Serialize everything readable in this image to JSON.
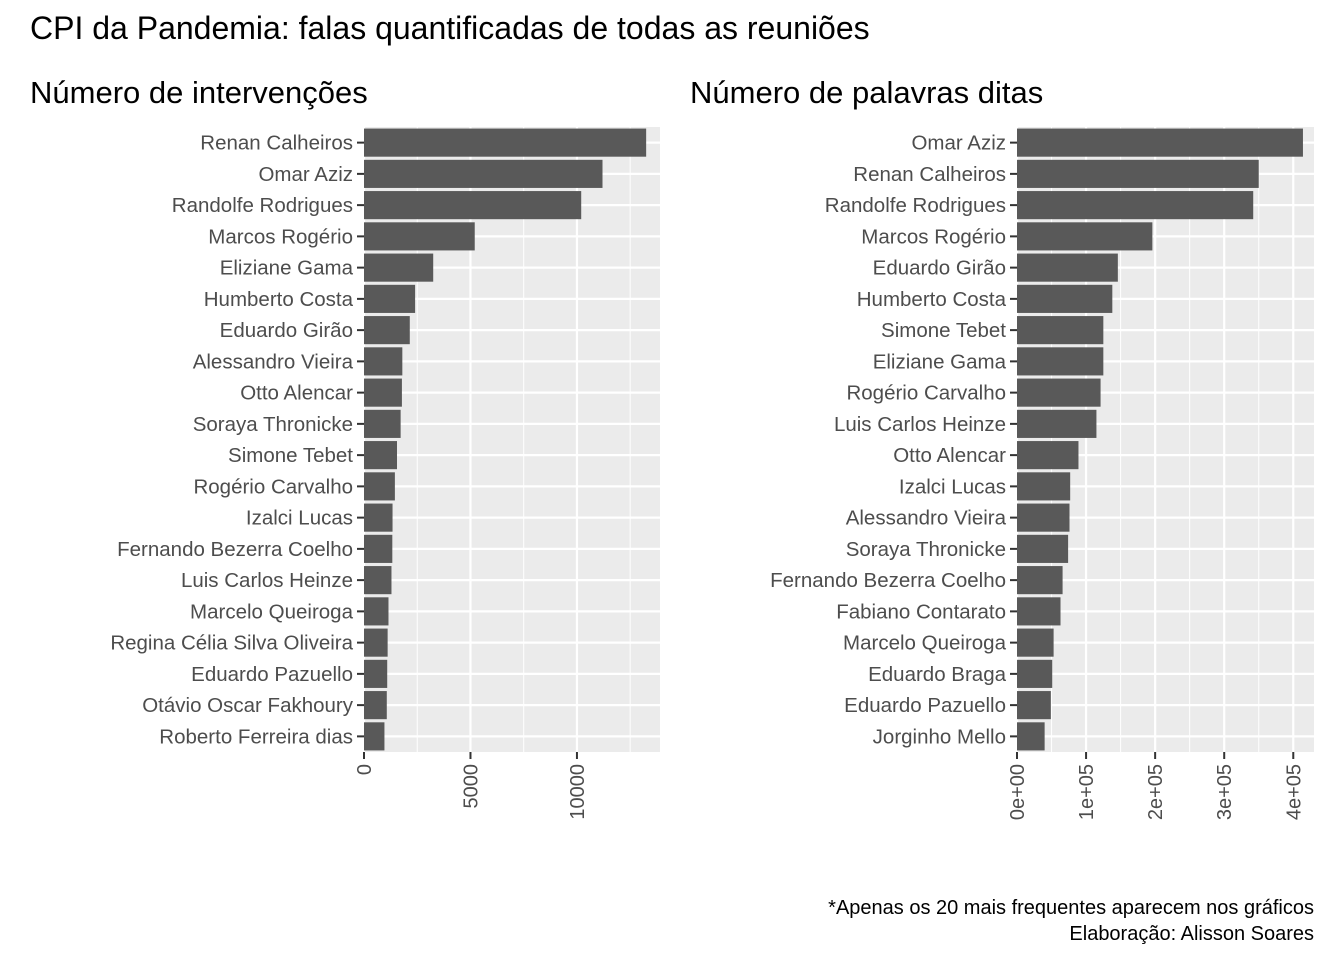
{
  "chart_data": {
    "title": "CPI da Pandemia: falas quantificadas de todas as reuniões",
    "caption": [
      "*Apenas os 20 mais frequentes aparecem nos gráficos",
      "Elaboração: Alisson Soares"
    ],
    "panels": [
      {
        "type": "bar",
        "orientation": "horizontal",
        "title": "Número de intervenções",
        "xlabel": "",
        "ylabel": "",
        "xlim": [
          0,
          13900
        ],
        "xticks": [
          0,
          5000,
          10000
        ],
        "xtick_labels": [
          "0",
          "5000",
          "10000"
        ],
        "grid": true,
        "categories": [
          "Renan Calheiros",
          "Omar Aziz",
          "Randolfe Rodrigues",
          "Marcos Rogério",
          "Eliziane Gama",
          "Humberto Costa",
          "Eduardo Girão",
          "Alessandro Vieira",
          "Otto Alencar",
          "Soraya Thronicke",
          "Simone Tebet",
          "Rogério Carvalho",
          "Izalci Lucas",
          "Fernando Bezerra Coelho",
          "Luis Carlos Heinze",
          "Marcelo Queiroga",
          "Regina Célia Silva Oliveira",
          "Eduardo Pazuello",
          "Otávio Oscar Fakhoury",
          "Roberto Ferreira dias"
        ],
        "values": [
          13250,
          11200,
          10200,
          5200,
          3250,
          2400,
          2150,
          1800,
          1780,
          1720,
          1550,
          1450,
          1340,
          1330,
          1290,
          1150,
          1110,
          1090,
          1070,
          960
        ]
      },
      {
        "type": "bar",
        "orientation": "horizontal",
        "title": "Número de palavras ditas",
        "xlabel": "",
        "ylabel": "",
        "xlim": [
          0,
          430000
        ],
        "xticks": [
          0,
          100000,
          200000,
          300000,
          400000
        ],
        "xtick_labels": [
          "0e+00",
          "1e+05",
          "2e+05",
          "3e+05",
          "4e+05"
        ],
        "grid": true,
        "categories": [
          "Omar Aziz",
          "Renan Calheiros",
          "Randolfe Rodrigues",
          "Marcos Rogério",
          "Eduardo Girão",
          "Humberto Costa",
          "Simone Tebet",
          "Eliziane Gama",
          "Rogério Carvalho",
          "Luis Carlos Heinze",
          "Otto Alencar",
          "Izalci Lucas",
          "Alessandro Vieira",
          "Soraya Thronicke",
          "Fernando Bezerra Coelho",
          "Fabiano Contarato",
          "Marcelo Queiroga",
          "Eduardo Braga",
          "Eduardo Pazuello",
          "Jorginho Mello"
        ],
        "values": [
          414000,
          350000,
          342000,
          196000,
          146000,
          138000,
          125000,
          125000,
          121000,
          115000,
          89000,
          77000,
          76000,
          74000,
          66000,
          63000,
          53000,
          51000,
          49000,
          40000
        ]
      }
    ]
  },
  "colors": {
    "bar": "#595959",
    "panel_bg": "#ebebeb",
    "grid": "#ffffff",
    "tick": "#333333",
    "label": "#4d4d4d",
    "title": "#000000"
  }
}
